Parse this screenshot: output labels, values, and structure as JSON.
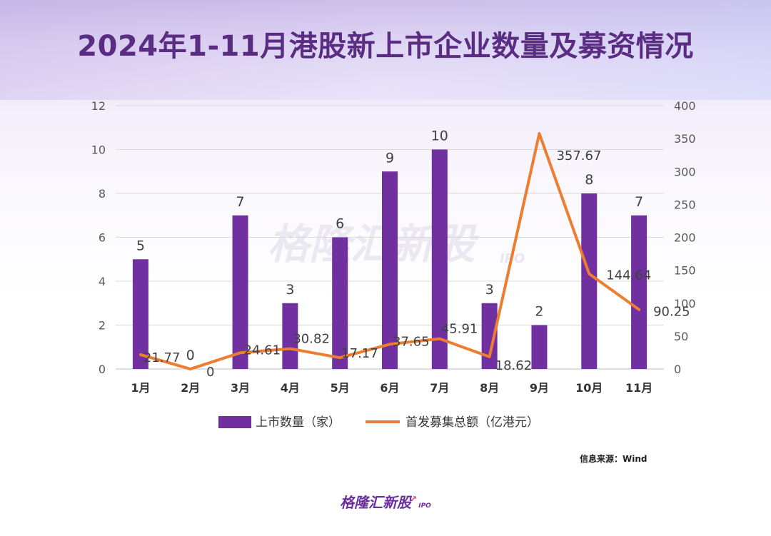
{
  "page": {
    "title": "2024年1-11月港股新上市企业数量及募资情况",
    "source": "信息来源：Wind",
    "watermark": "格隆汇新股",
    "watermark_sub": "IPO",
    "footer_logo": "格隆汇新股",
    "footer_logo_sub": "IPO"
  },
  "colors": {
    "bar": "#7030a0",
    "line": "#ed7d31",
    "title": "#5a2d82"
  },
  "chart_data": {
    "type": "bar",
    "categories": [
      "1月",
      "2月",
      "3月",
      "4月",
      "5月",
      "6月",
      "7月",
      "8月",
      "9月",
      "10月",
      "11月"
    ],
    "series": [
      {
        "name": "上市数量（家）",
        "type": "bar",
        "axis": "left",
        "values": [
          5,
          0,
          7,
          3,
          6,
          9,
          10,
          3,
          2,
          8,
          7
        ],
        "labels": [
          "5",
          "0",
          "7",
          "3",
          "6",
          "9",
          "10",
          "3",
          "2",
          "8",
          "7"
        ]
      },
      {
        "name": "首发募集总额（亿港元）",
        "type": "line",
        "axis": "right",
        "values": [
          21.77,
          0,
          24.61,
          30.82,
          17.17,
          37.65,
          45.91,
          18.62,
          357.67,
          144.64,
          90.25
        ],
        "labels": [
          "21.77",
          "0",
          "24.61",
          "30.82",
          "17.17",
          "37.65",
          "45.91",
          "18.62",
          "357.67",
          "144.64",
          "90.25"
        ]
      }
    ],
    "y_left": {
      "min": 0,
      "max": 12,
      "ticks": [
        "0",
        "2",
        "4",
        "6",
        "8",
        "10",
        "12"
      ]
    },
    "y_right": {
      "min": 0,
      "max": 400,
      "ticks": [
        "0",
        "50",
        "100",
        "150",
        "200",
        "250",
        "300",
        "350",
        "400"
      ]
    },
    "grid": true,
    "legend_position": "bottom"
  }
}
